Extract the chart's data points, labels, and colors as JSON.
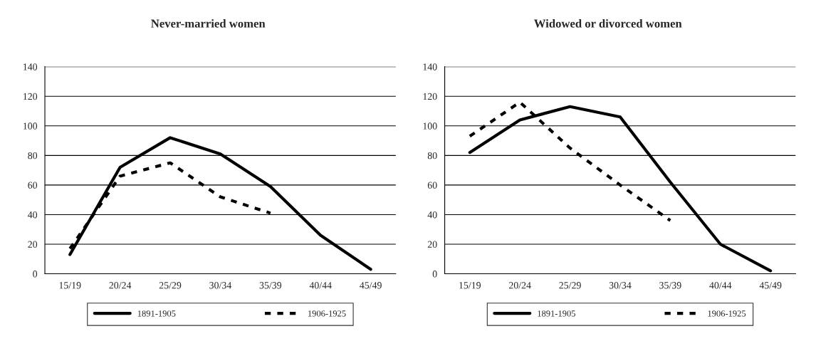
{
  "chart_data": [
    {
      "type": "line",
      "title": "Never-married women",
      "categories": [
        "15/19",
        "20/24",
        "25/29",
        "30/34",
        "35/39",
        "40/44",
        "45/49"
      ],
      "series": [
        {
          "name": "1891-1905",
          "color": "#000000",
          "line_style": "solid",
          "values": [
            13,
            72,
            92,
            81,
            59,
            26,
            3
          ]
        },
        {
          "name": "1906-1925",
          "color": "#000000",
          "line_style": "dashed",
          "values": [
            17,
            66,
            75,
            52,
            41,
            null,
            null
          ]
        }
      ],
      "ylim": [
        0,
        140
      ],
      "yticks": [
        0,
        20,
        40,
        60,
        80,
        100,
        120,
        140
      ],
      "grid": "y",
      "legend": "bottom",
      "marker": "none"
    },
    {
      "type": "line",
      "title": "Widowed or divorced women",
      "categories": [
        "15/19",
        "20/24",
        "25/29",
        "30/34",
        "35/39",
        "40/44",
        "45/49"
      ],
      "series": [
        {
          "name": "1891-1905",
          "color": "#000000",
          "line_style": "solid",
          "values": [
            82,
            104,
            113,
            106,
            62,
            20,
            2
          ]
        },
        {
          "name": "1906-1925",
          "color": "#000000",
          "line_style": "dashed",
          "values": [
            93,
            116,
            85,
            60,
            36,
            null,
            null
          ]
        }
      ],
      "ylim": [
        0,
        140
      ],
      "yticks": [
        0,
        20,
        40,
        60,
        80,
        100,
        120,
        140
      ],
      "grid": "y",
      "legend": "bottom",
      "marker": "none"
    }
  ]
}
